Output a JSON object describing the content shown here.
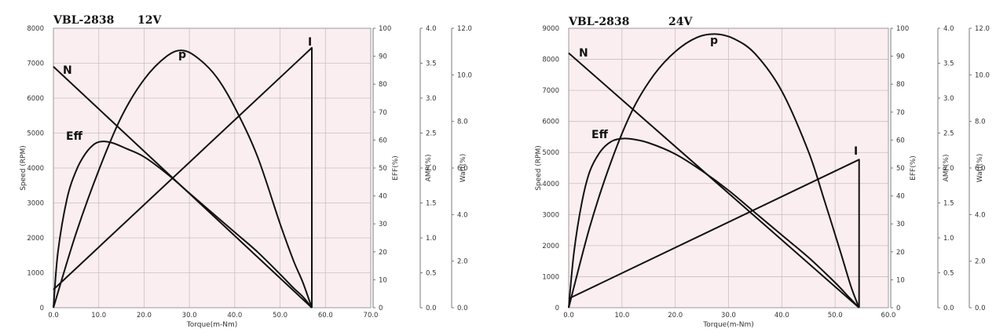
{
  "chart_data": [
    {
      "type": "line",
      "title_model": "VBL-2838",
      "title_voltage": "12V",
      "xlabel": "Torque(m-Nm)",
      "xlim": [
        0,
        70
      ],
      "xticks": [
        "0.0",
        "10.0",
        "20.0",
        "30.0",
        "40.0",
        "50.0",
        "60.0",
        "70.0"
      ],
      "ylabel": "Speed (RPM)",
      "ylim": [
        0,
        8000
      ],
      "yticks": [
        "0",
        "1000",
        "2000",
        "3000",
        "4000",
        "5000",
        "6000",
        "7000",
        "8000"
      ],
      "eff_label": "EFF(%)",
      "eff_ticks": [
        "0",
        "10",
        "20",
        "30",
        "40",
        "50",
        "60",
        "70",
        "80",
        "90",
        "100"
      ],
      "amp_label": "AMP(%)",
      "amp_ticks": [
        "0.0",
        "0.5",
        "1.0",
        "1.5",
        "2.0",
        "2.5",
        "3.0",
        "3.5",
        "4.0"
      ],
      "watt_label": "Watt(%)",
      "watt_ticks": [
        "0.0",
        "2.0",
        "4.0",
        "6.0",
        "8.0",
        "10.0",
        "12.0"
      ],
      "grid": true,
      "series": [
        {
          "name": "N",
          "x": [
            0,
            57
          ],
          "y": [
            6900,
            0
          ]
        },
        {
          "name": "I",
          "x": [
            0,
            57,
            57
          ],
          "y": [
            0.26,
            3.72,
            0
          ]
        },
        {
          "name": "Eff",
          "x": [
            0,
            1,
            3,
            5,
            7,
            9,
            10.7,
            13,
            16,
            20,
            25,
            30,
            35,
            40,
            45,
            50,
            53,
            55,
            56.5,
            57
          ],
          "y": [
            0,
            20,
            39,
            49,
            55,
            58.5,
            59.5,
            59,
            57,
            54,
            48,
            41,
            34,
            27,
            20,
            12,
            7,
            4,
            1,
            0
          ]
        },
        {
          "name": "p",
          "x": [
            0,
            5,
            10,
            15,
            20,
            25,
            28.5,
            32,
            36,
            40,
            45,
            50,
            53,
            55,
            57
          ],
          "y": [
            0,
            3.2,
            5.9,
            8.2,
            9.8,
            10.8,
            11.05,
            10.7,
            9.9,
            8.6,
            6.5,
            3.6,
            2.0,
            1.1,
            0
          ]
        }
      ]
    },
    {
      "type": "line",
      "title_model": "VBL-2838",
      "title_voltage": "24V",
      "xlabel": "Torque(m-Nm)",
      "xlim": [
        0,
        60
      ],
      "xticks": [
        "0.0",
        "10.0",
        "20.0",
        "30.0",
        "40.0",
        "50.0",
        "60.0"
      ],
      "ylabel": "Speed (RPM)",
      "ylim": [
        0,
        9000
      ],
      "yticks": [
        "0",
        "1000",
        "2000",
        "3000",
        "4000",
        "5000",
        "6000",
        "7000",
        "8000",
        "9000"
      ],
      "eff_label": "EFF(%)",
      "eff_ticks": [
        "0",
        "10",
        "20",
        "30",
        "40",
        "50",
        "60",
        "70",
        "80",
        "90",
        "100"
      ],
      "amp_label": "AMP(%)",
      "amp_ticks": [
        "0.0",
        "0.5",
        "1.0",
        "1.5",
        "2.0",
        "2.5",
        "3.0",
        "3.5",
        "4.0"
      ],
      "watt_label": "Watt(%)",
      "watt_ticks": [
        "0.0",
        "2.0",
        "4.0",
        "6.0",
        "8.0",
        "10.0",
        "12.0"
      ],
      "grid": true,
      "series": [
        {
          "name": "N",
          "x": [
            0,
            54.5
          ],
          "y": [
            8200,
            0
          ]
        },
        {
          "name": "I",
          "x": [
            0,
            54.5,
            54.5
          ],
          "y": [
            0.13,
            2.12,
            0
          ]
        },
        {
          "name": "Eff",
          "x": [
            0,
            1,
            2.5,
            4,
            6,
            8,
            10,
            12,
            15,
            20,
            25,
            30,
            35,
            40,
            45,
            50,
            52.5,
            54,
            54.5
          ],
          "y": [
            0,
            20,
            38,
            49,
            56,
            59.5,
            60.5,
            60.3,
            59,
            55,
            49,
            42,
            34,
            26,
            18,
            9,
            4,
            1,
            0
          ]
        },
        {
          "name": "p",
          "x": [
            0,
            4,
            8,
            12,
            16,
            20,
            24,
            27.5,
            31,
            35,
            40,
            45,
            48,
            51,
            53,
            54.5
          ],
          "y": [
            0,
            3.5,
            6.3,
            8.5,
            10.0,
            11.0,
            11.6,
            11.75,
            11.55,
            10.9,
            9.3,
            6.7,
            4.6,
            2.4,
            0.9,
            0
          ]
        }
      ]
    }
  ]
}
